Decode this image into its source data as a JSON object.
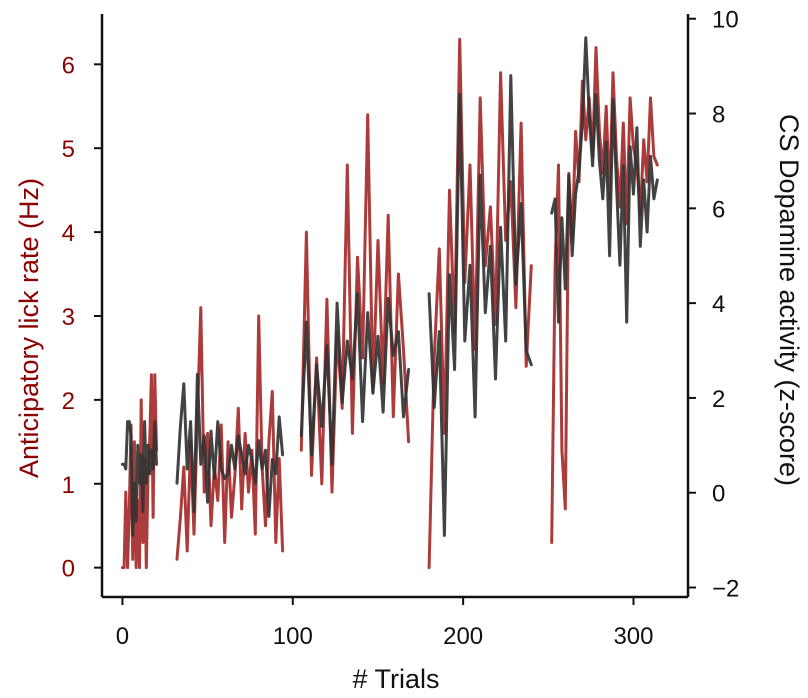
{
  "chart_data": {
    "type": "line",
    "xlabel": "# Trials",
    "ylabel_left": "Anticipatory lick rate (Hz)",
    "ylabel_right": "CS Dopamine activity (z-score)",
    "xlim": [
      -12,
      332
    ],
    "ylim_left": [
      -0.35,
      6.6
    ],
    "ylim_right": [
      -2.2,
      10.1
    ],
    "x_ticks": [
      0,
      100,
      200,
      300
    ],
    "y_ticks_left": [
      0,
      1,
      2,
      3,
      4,
      5,
      6
    ],
    "y_ticks_right": [
      -2,
      0,
      2,
      4,
      6,
      8,
      10
    ],
    "grid": false,
    "colors": {
      "lick": "#a52a2a",
      "dopamine": "#333333",
      "left_axis_text": "#8b0000",
      "right_axis_text": "#111111"
    },
    "series": [
      {
        "axis": "left",
        "segments": [
          {
            "x": [
              0,
              1,
              2,
              3,
              4,
              5,
              6,
              7,
              8,
              9,
              10,
              11,
              12,
              13,
              14,
              15,
              16,
              17,
              18,
              19,
              20
            ],
            "y": [
              0,
              0,
              0.9,
              0,
              0.7,
              1.7,
              0.1,
              1.5,
              0,
              0.8,
              0,
              2,
              0.3,
              1.3,
              0,
              1.1,
              1.5,
              2.3,
              0.6,
              2.3,
              1.4
            ]
          },
          {
            "x": [
              32,
              34,
              36,
              38,
              40,
              42,
              44,
              46,
              48,
              50,
              52,
              54,
              56,
              58,
              60,
              62,
              64,
              66,
              68,
              70,
              72,
              74,
              76,
              78,
              80,
              82,
              84,
              86,
              88,
              90,
              92,
              94
            ],
            "y": [
              0.1,
              0.6,
              1.2,
              0.2,
              1.5,
              0.4,
              1.8,
              3.1,
              0.9,
              1.6,
              0.5,
              1.2,
              0.8,
              1.7,
              0.3,
              1.5,
              0.6,
              1.1,
              1.9,
              0.7,
              1.6,
              0.9,
              1.4,
              0.4,
              3,
              1.2,
              0.5,
              1.5,
              2.1,
              0.3,
              1.3,
              0.2
            ]
          },
          {
            "x": [
              105,
              108,
              111,
              114,
              117,
              120,
              123,
              126,
              129,
              132,
              135,
              138,
              141,
              144,
              147,
              150,
              153,
              156,
              159,
              162,
              165,
              168
            ],
            "y": [
              1.4,
              4,
              1.1,
              2.5,
              1,
              3.2,
              0.9,
              2.8,
              1.9,
              4.8,
              1.6,
              3.7,
              2.5,
              5.4,
              2.1,
              3.9,
              2.2,
              4.2,
              1.8,
              3.5,
              2.6,
              1.5
            ]
          },
          {
            "x": [
              180,
              183,
              186,
              189,
              192,
              195,
              198,
              201,
              204,
              207,
              210,
              213,
              216,
              219,
              222,
              225,
              228,
              231,
              234,
              237,
              240
            ],
            "y": [
              0,
              2.5,
              3.8,
              1.6,
              4.5,
              2.8,
              6.3,
              3.4,
              4.8,
              2.6,
              5.6,
              3.6,
              4.3,
              2.9,
              5.9,
              3.9,
              4.6,
              3.1,
              5.3,
              2.4,
              3.6
            ]
          },
          {
            "x": [
              252,
              254,
              256,
              258,
              260,
              262,
              264,
              266,
              268,
              270,
              272,
              274,
              276,
              278,
              280,
              282,
              284,
              286,
              288,
              290,
              292,
              294,
              296,
              298,
              300,
              302,
              304,
              306,
              308,
              310,
              312,
              314
            ],
            "y": [
              0.3,
              3.6,
              4.8,
              1.4,
              0.7,
              4.7,
              3.9,
              5.2,
              4.6,
              5.8,
              5.1,
              5.6,
              4.9,
              6.2,
              5.2,
              4.7,
              5.5,
              4.4,
              5.9,
              4.9,
              4.3,
              5.3,
              4.1,
              5.6,
              5,
              4.8,
              4.2,
              5.1,
              4.6,
              5.6,
              4.9,
              4.8
            ]
          }
        ]
      },
      {
        "axis": "right",
        "segments": [
          {
            "x": [
              0,
              1,
              2,
              3,
              4,
              5,
              6,
              7,
              8,
              9,
              10,
              11,
              12,
              13,
              14,
              15,
              16,
              17,
              18,
              19,
              20
            ],
            "y": [
              0.6,
              0.6,
              0.5,
              1.5,
              1.5,
              1.2,
              -0.9,
              0.2,
              -0.6,
              1,
              0.2,
              0.8,
              -0.4,
              1.5,
              0.2,
              1,
              0.4,
              0.9,
              0.5,
              1.5,
              0.6
            ]
          },
          {
            "x": [
              32,
              34,
              36,
              38,
              40,
              42,
              44,
              46,
              48,
              50,
              52,
              54,
              56,
              58,
              60,
              62,
              64,
              66,
              68,
              70,
              72,
              74,
              76,
              78,
              80,
              82,
              84,
              86,
              88,
              90,
              92,
              94
            ],
            "y": [
              0.2,
              1.4,
              2.3,
              0.5,
              1.5,
              -0.4,
              2.5,
              0.6,
              1.2,
              -0.2,
              1.3,
              0.3,
              1.5,
              0.5,
              0.3,
              0.4,
              1,
              0.5,
              1.2,
              0.8,
              0.4,
              1,
              0.7,
              0.2,
              1.1,
              0.5,
              0.9,
              -0.5,
              0.7,
              0.4,
              1.6,
              0.8
            ]
          },
          {
            "x": [
              105,
              108,
              111,
              114,
              117,
              120,
              123,
              126,
              129,
              132,
              135,
              138,
              141,
              144,
              147,
              150,
              153,
              156,
              159,
              162,
              165,
              168
            ],
            "y": [
              1.2,
              3.6,
              0.8,
              2.7,
              1.4,
              3.1,
              0.6,
              4,
              1.9,
              3.2,
              2.4,
              4.2,
              1.5,
              3.8,
              2.1,
              3.3,
              1.7,
              4.1,
              2.9,
              3.4,
              1.6,
              2.6
            ]
          },
          {
            "x": [
              180,
              183,
              186,
              189,
              192,
              195,
              198,
              201,
              204,
              207,
              210,
              213,
              216,
              219,
              222,
              225,
              228,
              231,
              234,
              237,
              240
            ],
            "y": [
              4.2,
              1.8,
              3.4,
              -0.9,
              4.6,
              2.6,
              8.4,
              3.2,
              4.8,
              1.6,
              6.7,
              3.8,
              5.2,
              2.4,
              5.6,
              3.2,
              8.8,
              4.4,
              6.1,
              3,
              2.7
            ]
          },
          {
            "x": [
              252,
              254,
              256,
              258,
              260,
              262,
              264,
              266,
              268,
              270,
              272,
              274,
              276,
              278,
              280,
              282,
              284,
              286,
              288,
              290,
              292,
              294,
              296,
              298,
              300,
              302,
              304,
              306,
              308,
              310,
              312,
              314
            ],
            "y": [
              5.9,
              6.2,
              3.6,
              5.8,
              4.3,
              6.7,
              5,
              6.3,
              6.8,
              7.8,
              9.6,
              8,
              6.9,
              8.4,
              7,
              6.2,
              7.4,
              5,
              8.3,
              6.5,
              4.8,
              6.9,
              3.6,
              7.3,
              6.3,
              7.7,
              5.2,
              6.6,
              5.5,
              7.1,
              6.2,
              6.6
            ]
          }
        ]
      }
    ]
  }
}
